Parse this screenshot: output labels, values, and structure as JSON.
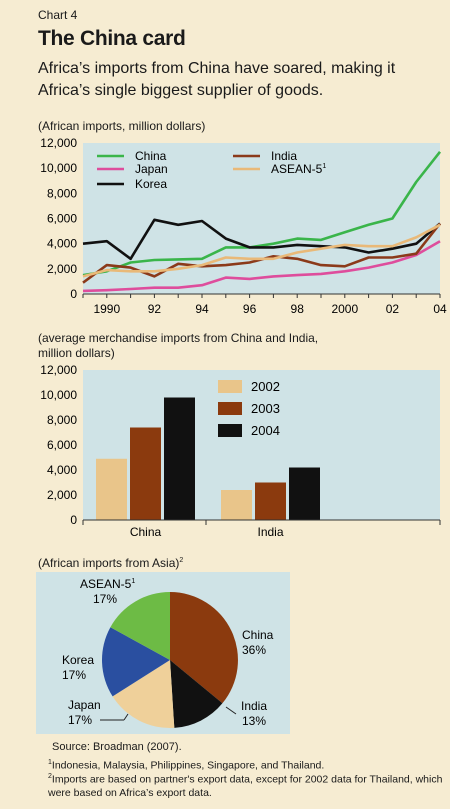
{
  "header": {
    "chart_label": "Chart 4",
    "title": "The China card",
    "subtitle": "Africa’s imports from China have soared, making it Africa’s single biggest supplier of goods."
  },
  "colors": {
    "background": "#f6ecd2",
    "panel": "#cfe3e6",
    "china_line": "#3ab54a",
    "japan_line": "#de4d9c",
    "korea_line": "#111111",
    "india_line": "#8b3a1a",
    "asean_line": "#e9b978",
    "bar_2002": "#e9c58a",
    "bar_2003": "#8b3a0e",
    "bar_2004": "#111111",
    "pie_china": "#8b3a0e",
    "pie_india": "#111111",
    "pie_japan": "#efd09a",
    "pie_korea": "#2a4fa0",
    "pie_asean": "#6dbb45"
  },
  "chart_data": [
    {
      "type": "line",
      "note": "(African imports, million dollars)",
      "x": [
        1989,
        1990,
        1991,
        1992,
        1993,
        1994,
        1995,
        1996,
        1997,
        1998,
        1999,
        2000,
        2001,
        2002,
        2003,
        2004
      ],
      "x_ticks": [
        "1990",
        "92",
        "94",
        "96",
        "98",
        "2000",
        "02",
        "04"
      ],
      "x_tick_values": [
        1990,
        1992,
        1994,
        1996,
        1998,
        2000,
        2002,
        2004
      ],
      "ylim": [
        0,
        12000
      ],
      "y_ticks": [
        "0",
        "2,000",
        "4,000",
        "6,000",
        "8,000",
        "10,000",
        "12,000"
      ],
      "grid": false,
      "legend": "top",
      "series": [
        {
          "name": "China",
          "color_key": "china_line",
          "values": [
            1500,
            1800,
            2500,
            2700,
            2750,
            2800,
            3700,
            3700,
            4000,
            4400,
            4300,
            4900,
            5500,
            6000,
            8900,
            11300
          ]
        },
        {
          "name": "Japan",
          "color_key": "japan_line",
          "values": [
            250,
            300,
            400,
            500,
            500,
            700,
            1300,
            1200,
            1400,
            1500,
            1600,
            1800,
            2100,
            2500,
            3100,
            4200
          ]
        },
        {
          "name": "Korea",
          "color_key": "korea_line",
          "values": [
            4000,
            4200,
            2800,
            5900,
            5500,
            5800,
            4400,
            3700,
            3700,
            3900,
            3800,
            3700,
            3300,
            3600,
            4000,
            5600
          ]
        },
        {
          "name": "India",
          "color_key": "india_line",
          "values": [
            900,
            2300,
            2100,
            1400,
            2400,
            2200,
            2300,
            2500,
            3000,
            2800,
            2300,
            2200,
            2900,
            2900,
            3200,
            5600
          ]
        },
        {
          "name": "ASEAN-5",
          "sup": "1",
          "color_key": "asean_line",
          "values": [
            1400,
            1900,
            1800,
            1800,
            2000,
            2300,
            2900,
            2800,
            2800,
            3300,
            3600,
            3900,
            3800,
            3800,
            4500,
            5500
          ]
        }
      ]
    },
    {
      "type": "bar",
      "note": "(average merchandise imports from China and India, million dollars)",
      "categories": [
        "China",
        "India"
      ],
      "ylim": [
        0,
        12000
      ],
      "y_ticks": [
        "0",
        "2,000",
        "4,000",
        "6,000",
        "8,000",
        "10,000",
        "12,000"
      ],
      "legend": "top-right",
      "series": [
        {
          "name": "2002",
          "color_key": "bar_2002",
          "values": [
            4900,
            2400
          ]
        },
        {
          "name": "2003",
          "color_key": "bar_2003",
          "values": [
            7400,
            3000
          ]
        },
        {
          "name": "2004",
          "color_key": "bar_2004",
          "values": [
            9800,
            4200
          ]
        }
      ]
    },
    {
      "type": "pie",
      "note": "(African imports from Asia)",
      "note_sup": "2",
      "slices": [
        {
          "label": "China",
          "value": 36,
          "value_label": "36%",
          "color_key": "pie_china"
        },
        {
          "label": "India",
          "value": 13,
          "value_label": "13%",
          "color_key": "pie_india"
        },
        {
          "label": "Japan",
          "value": 17,
          "value_label": "17%",
          "color_key": "pie_japan"
        },
        {
          "label": "Korea",
          "value": 17,
          "value_label": "17%",
          "color_key": "pie_korea"
        },
        {
          "label": "ASEAN-5",
          "sup": "1",
          "value": 17,
          "value_label": "17%",
          "color_key": "pie_asean"
        }
      ]
    }
  ],
  "footer": {
    "source": "Source:  Broadman (2007).",
    "fn1_mark": "1",
    "fn1": "Indonesia, Malaysia, Philippines, Singapore, and Thailand.",
    "fn2_mark": "2",
    "fn2": "Imports are based on partner's export data, except for 2002 data for Thailand, which were based on Africa’s export data."
  }
}
